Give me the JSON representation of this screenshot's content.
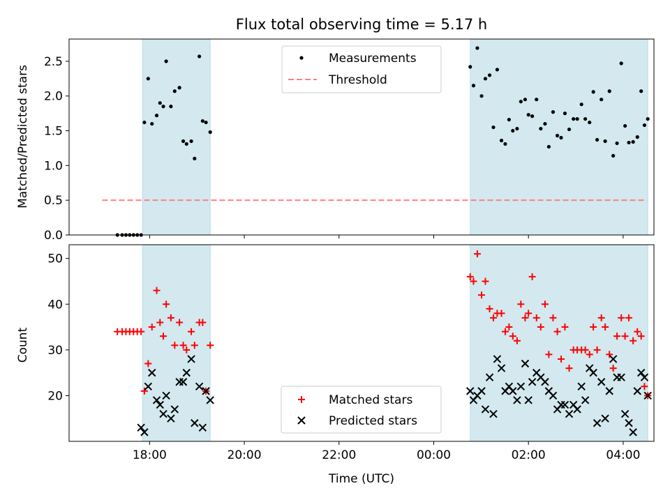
{
  "chart_data": {
    "title": "Flux total observing time = 5.17 h",
    "xlabel": "Time (UTC)",
    "x_ticks": [
      "18:00",
      "20:00",
      "22:00",
      "00:00",
      "02:00",
      "04:00"
    ],
    "x_tick_hours": [
      18,
      20,
      22,
      24,
      26,
      28
    ],
    "x_range_hours": [
      16.3,
      28.65
    ],
    "shaded_intervals_hours": [
      [
        17.85,
        19.28
      ],
      [
        24.77,
        28.52
      ]
    ],
    "shade_color": "#d3e9ef",
    "panels": [
      {
        "type": "scatter",
        "ylabel": "Matched/Predicted stars",
        "ylim": [
          0,
          2.82
        ],
        "yticks": [
          "0.0",
          "0.5",
          "1.0",
          "1.5",
          "2.0",
          "2.5"
        ],
        "ytick_values": [
          0,
          0.5,
          1.0,
          1.5,
          2.0,
          2.5
        ],
        "legend": {
          "position": "upper center",
          "entries": [
            "Measurements",
            "Threshold"
          ]
        },
        "series": [
          {
            "name": "Measurements",
            "marker": "dot",
            "color": "#000000",
            "x": [
              17.32,
              17.42,
              17.5,
              17.58,
              17.66,
              17.74,
              17.82,
              17.89,
              17.97,
              18.05,
              18.15,
              18.22,
              18.29,
              18.35,
              18.45,
              18.53,
              18.63,
              18.71,
              18.78,
              18.88,
              18.95,
              19.05,
              19.12,
              19.19,
              19.28,
              24.77,
              24.84,
              24.92,
              25.01,
              25.09,
              25.18,
              25.26,
              25.34,
              25.43,
              25.51,
              25.59,
              25.67,
              25.76,
              25.84,
              25.93,
              26.0,
              26.08,
              26.17,
              26.26,
              26.35,
              26.43,
              26.52,
              26.61,
              26.69,
              26.77,
              26.86,
              26.95,
              27.03,
              27.12,
              27.2,
              27.29,
              27.37,
              27.45,
              27.54,
              27.62,
              27.71,
              27.79,
              27.87,
              27.96,
              28.04,
              28.12,
              28.21,
              28.3,
              28.38,
              28.45,
              28.52
            ],
            "y": [
              0,
              0,
              0,
              0,
              0,
              0,
              0,
              1.62,
              2.25,
              1.6,
              1.72,
              1.9,
              1.85,
              2.5,
              1.85,
              2.07,
              2.12,
              1.35,
              1.31,
              1.35,
              1.1,
              2.57,
              1.64,
              1.62,
              1.48,
              2.42,
              2.15,
              2.69,
              2.0,
              2.25,
              2.3,
              1.55,
              2.38,
              1.36,
              1.31,
              1.66,
              1.5,
              1.53,
              1.92,
              1.95,
              1.73,
              1.71,
              1.95,
              1.53,
              1.6,
              1.27,
              1.77,
              1.43,
              1.4,
              1.75,
              1.52,
              1.67,
              1.67,
              1.88,
              1.67,
              1.62,
              2.06,
              1.37,
              1.95,
              1.35,
              2.07,
              1.14,
              1.32,
              2.47,
              1.57,
              1.33,
              1.34,
              1.41,
              2.07,
              1.58,
              1.67
            ]
          },
          {
            "name": "Threshold",
            "style": "dashed",
            "color": "#ff7f7f",
            "x": [
              17.0,
              28.5
            ],
            "y": [
              0.5,
              0.5
            ]
          }
        ]
      },
      {
        "type": "scatter",
        "ylabel": "Count",
        "ylim": [
          10,
          53
        ],
        "yticks": [
          "20",
          "30",
          "40",
          "50"
        ],
        "ytick_values": [
          20,
          30,
          40,
          50
        ],
        "legend": {
          "position": "lower center",
          "entries": [
            "Matched stars",
            "Predicted stars"
          ]
        },
        "series": [
          {
            "name": "Matched stars",
            "marker": "plus",
            "color": "#ff0000",
            "x": [
              17.32,
              17.42,
              17.5,
              17.58,
              17.66,
              17.74,
              17.82,
              17.89,
              17.97,
              18.05,
              18.15,
              18.22,
              18.29,
              18.35,
              18.45,
              18.53,
              18.63,
              18.71,
              18.78,
              18.88,
              18.95,
              19.05,
              19.12,
              19.19,
              19.28,
              24.77,
              24.84,
              24.92,
              25.01,
              25.09,
              25.18,
              25.26,
              25.34,
              25.43,
              25.51,
              25.59,
              25.67,
              25.76,
              25.84,
              25.93,
              26.0,
              26.08,
              26.17,
              26.26,
              26.35,
              26.43,
              26.52,
              26.61,
              26.69,
              26.77,
              26.86,
              26.95,
              27.03,
              27.12,
              27.2,
              27.29,
              27.37,
              27.45,
              27.54,
              27.62,
              27.71,
              27.79,
              27.87,
              27.96,
              28.04,
              28.12,
              28.21,
              28.3,
              28.38,
              28.45,
              28.52
            ],
            "y": [
              34,
              34,
              34,
              34,
              34,
              34,
              34,
              21,
              27,
              35,
              43,
              36,
              33,
              40,
              37,
              31,
              36,
              31,
              30,
              34,
              31,
              36,
              36,
              21,
              31,
              46,
              45,
              51,
              42,
              45,
              39,
              37,
              38,
              38,
              34,
              35,
              33,
              32,
              40,
              37,
              38,
              46,
              37,
              35,
              40,
              29,
              37,
              34,
              28,
              35,
              26,
              30,
              30,
              30,
              30,
              29,
              35,
              30,
              37,
              35,
              29,
              26,
              33,
              37,
              33,
              37,
              32,
              34,
              33,
              22,
              20
            ]
          },
          {
            "name": "Predicted stars",
            "marker": "x",
            "color": "#000000",
            "x": [
              17.82,
              17.89,
              17.97,
              18.05,
              18.15,
              18.22,
              18.29,
              18.35,
              18.45,
              18.53,
              18.63,
              18.71,
              18.78,
              18.88,
              18.95,
              19.05,
              19.12,
              19.19,
              19.28,
              24.77,
              24.84,
              24.92,
              25.01,
              25.09,
              25.18,
              25.26,
              25.34,
              25.43,
              25.51,
              25.59,
              25.67,
              25.76,
              25.84,
              25.93,
              26.0,
              26.08,
              26.17,
              26.26,
              26.35,
              26.43,
              26.52,
              26.61,
              26.69,
              26.77,
              26.86,
              26.95,
              27.03,
              27.12,
              27.2,
              27.29,
              27.37,
              27.45,
              27.54,
              27.62,
              27.71,
              27.79,
              27.87,
              27.96,
              28.04,
              28.12,
              28.21,
              28.3,
              28.38,
              28.45,
              28.52
            ],
            "y": [
              13,
              12,
              22,
              25,
              19,
              18,
              16,
              20,
              15,
              17,
              23,
              23,
              25,
              28,
              14,
              22,
              13,
              21,
              19,
              21,
              19,
              20,
              21,
              17,
              24,
              16,
              28,
              26,
              21,
              22,
              21,
              19,
              22,
              27,
              19,
              23,
              25,
              24,
              23,
              21,
              20,
              17,
              18,
              18,
              16,
              18,
              17,
              22,
              19,
              26,
              25,
              14,
              23,
              15,
              21,
              28,
              24,
              24,
              16,
              14,
              12,
              21,
              25,
              24,
              20
            ]
          }
        ]
      }
    ]
  }
}
